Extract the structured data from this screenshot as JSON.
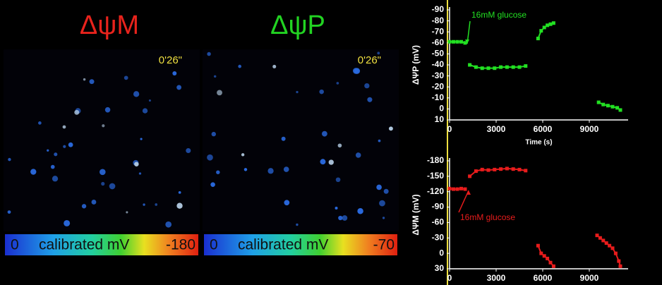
{
  "panels": [
    {
      "title": "ΔψM",
      "title_color": "#e8231c",
      "timestamp": "0'26\"",
      "colorbar": {
        "min_label": "0",
        "label": "calibrated mV",
        "max_label": "-180"
      }
    },
    {
      "title": "ΔψP",
      "title_color": "#22d322",
      "timestamp": "0'26\"",
      "colorbar": {
        "min_label": "0",
        "label": "calibrated mV",
        "max_label": "-70"
      }
    }
  ],
  "chart_data": [
    {
      "type": "line",
      "y_label": "ΔΨP (mV)",
      "x_label": "Time (s)",
      "annotation": "16mM glucose",
      "xlim": [
        0,
        11500
      ],
      "xticks": [
        0,
        3000,
        6000,
        9000
      ],
      "ylim": [
        10,
        -90
      ],
      "yticks": [
        -90,
        -80,
        -70,
        -60,
        -50,
        -40,
        -30,
        -20,
        -10,
        0,
        10
      ],
      "series": [
        {
          "color": "#22e022",
          "x": [
            0,
            250,
            500,
            750,
            1000,
            1100,
            1300,
            1700,
            2100,
            2500,
            2900,
            3300,
            3700,
            4100,
            4500,
            4900,
            5300,
            5700,
            5900,
            6100,
            6300,
            6500,
            6700,
            8000,
            9600,
            9900,
            10200,
            10500,
            10800,
            11000
          ],
          "values": [
            -61,
            -61,
            -61,
            -61,
            -60,
            null,
            -40,
            -38,
            -37,
            -37,
            -37,
            -38,
            -38,
            -38,
            -38,
            -39,
            null,
            -64,
            -71,
            -74,
            -76,
            -77,
            -78,
            null,
            -6,
            -4,
            -3,
            -2,
            -1,
            1
          ]
        }
      ]
    },
    {
      "type": "line",
      "y_label": "ΔΨM (mV)",
      "annotation": "16mM glucose",
      "xlim": [
        0,
        11500
      ],
      "xticks": [
        0,
        3000,
        6000,
        9000
      ],
      "ylim": [
        30,
        -180
      ],
      "yticks": [
        -180,
        -150,
        -120,
        -90,
        -60,
        -30,
        0,
        30
      ],
      "series": [
        {
          "color": "#e81c1c",
          "x": [
            0,
            250,
            500,
            750,
            1000,
            1100,
            1300,
            1700,
            2100,
            2500,
            2900,
            3300,
            3700,
            4100,
            4500,
            4900,
            5300,
            5700,
            5900,
            6100,
            6300,
            6500,
            6700,
            8000,
            9500,
            9700,
            9900,
            10100,
            10300,
            10500,
            10700,
            10900,
            11000
          ],
          "values": [
            -126,
            -125,
            -125,
            -126,
            -125,
            null,
            -150,
            -160,
            -163,
            -162,
            -163,
            -164,
            -165,
            -164,
            -163,
            -161,
            null,
            -15,
            0,
            5,
            10,
            18,
            25,
            null,
            -35,
            -30,
            -25,
            -20,
            -15,
            -10,
            0,
            15,
            25
          ]
        }
      ]
    }
  ]
}
